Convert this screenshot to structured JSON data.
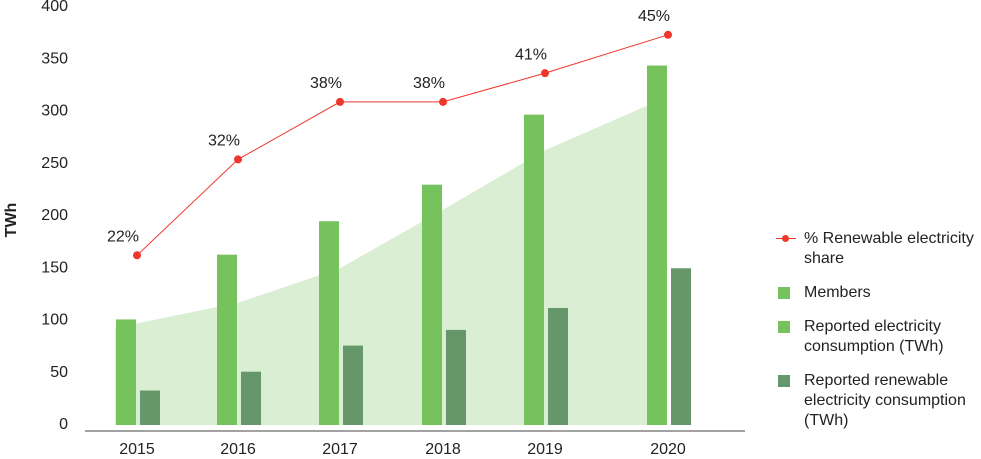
{
  "chart_data": {
    "type": "bar",
    "y_label": "TWh",
    "categories": [
      "2015",
      "2016",
      "2017",
      "2018",
      "2019",
      "2020"
    ],
    "ylim": [
      0,
      400
    ],
    "yticks": [
      0,
      50,
      100,
      150,
      200,
      250,
      300,
      350,
      400
    ],
    "y2lim": [
      4.3,
      47.9
    ],
    "series": [
      {
        "name": "% Renewable electricity share",
        "kind": "line",
        "axis": "y2",
        "color": "#f0352a",
        "values": [
          22,
          32,
          38,
          38,
          41,
          45
        ],
        "value_labels": [
          "22%",
          "32%",
          "38%",
          "38%",
          "41%",
          "45%"
        ]
      },
      {
        "name": "Members",
        "kind": "area",
        "color": "#76c25d",
        "values": [
          93,
          117,
          150,
          206,
          263,
          310
        ]
      },
      {
        "name": "Reported electricity consumption (TWh)",
        "kind": "bar",
        "color": "#76c25d",
        "values": [
          101,
          163,
          195,
          230,
          297,
          344
        ]
      },
      {
        "name": "Reported renewable electricity consumption (TWh)",
        "kind": "bar",
        "color": "#66976a",
        "values": [
          33,
          51,
          76,
          91,
          112,
          150
        ]
      }
    ]
  }
}
